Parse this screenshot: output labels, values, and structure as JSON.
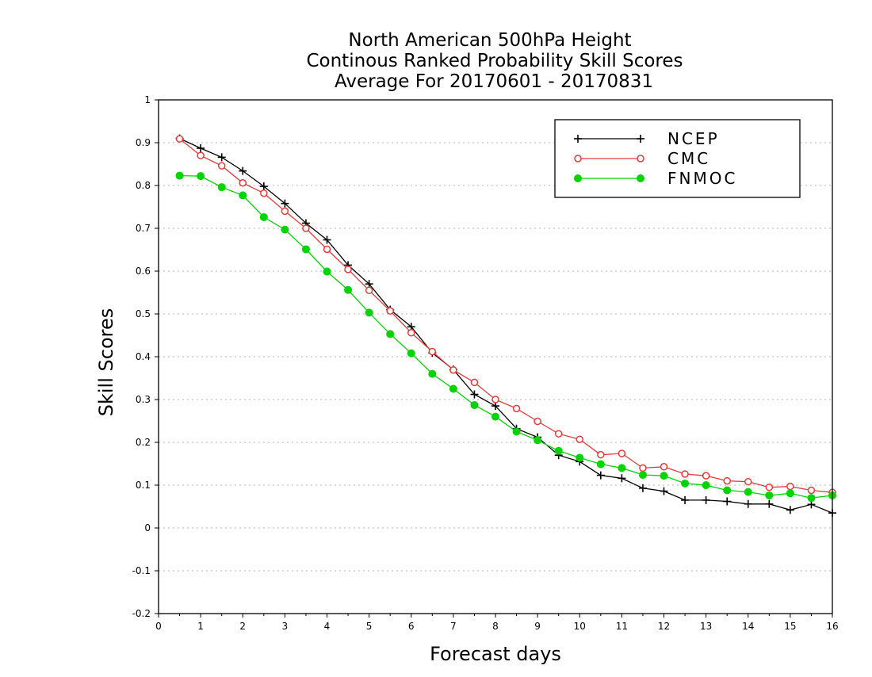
{
  "chart_data": {
    "type": "line",
    "title_lines": [
      "North American 500hPa Height",
      "Continous Ranked Probability Skill Scores",
      "Average For 20170601 - 20170831"
    ],
    "xlabel": "Forecast days",
    "ylabel": "Skill Scores",
    "xlim": [
      0,
      16
    ],
    "ylim": [
      -0.2,
      1
    ],
    "xticks": [
      "0",
      "1",
      "2",
      "3",
      "4",
      "5",
      "6",
      "7",
      "8",
      "9",
      "10",
      "11",
      "12",
      "13",
      "14",
      "15",
      "16"
    ],
    "yticks": [
      "-0.2",
      "-0.1",
      "0",
      "0.1",
      "0.2",
      "0.3",
      "0.4",
      "0.5",
      "0.6",
      "0.7",
      "0.8",
      "0.9",
      "1"
    ],
    "ytick_values": [
      -0.2,
      -0.1,
      0,
      0.1,
      0.2,
      0.3,
      0.4,
      0.5,
      0.6,
      0.7,
      0.8,
      0.9,
      1
    ],
    "grid": "horizontal dotted",
    "legend_position": "top-right",
    "x": [
      0.5,
      1,
      1.5,
      2,
      2.5,
      3,
      3.5,
      4,
      4.5,
      5,
      5.5,
      6,
      6.5,
      7,
      7.5,
      8,
      8.5,
      9,
      9.5,
      10,
      10.5,
      11,
      11.5,
      12,
      12.5,
      13,
      13.5,
      14,
      14.5,
      15,
      15.5,
      16
    ],
    "series": [
      {
        "name": "NCEP",
        "color": "#000000",
        "marker": "plus",
        "values": [
          0.91,
          0.887,
          0.866,
          0.834,
          0.798,
          0.758,
          0.712,
          0.673,
          0.614,
          0.57,
          0.51,
          0.47,
          0.409,
          0.37,
          0.312,
          0.285,
          0.232,
          0.212,
          0.17,
          0.155,
          0.123,
          0.116,
          0.093,
          0.086,
          0.065,
          0.065,
          0.062,
          0.056,
          0.056,
          0.042,
          0.055,
          0.035
        ]
      },
      {
        "name": "CMC",
        "color": "#e8393a",
        "marker": "open-circle",
        "values": [
          0.909,
          0.87,
          0.846,
          0.806,
          0.782,
          0.74,
          0.7,
          0.651,
          0.604,
          0.555,
          0.507,
          0.456,
          0.412,
          0.369,
          0.34,
          0.3,
          0.279,
          0.249,
          0.22,
          0.207,
          0.171,
          0.174,
          0.14,
          0.143,
          0.126,
          0.122,
          0.11,
          0.108,
          0.095,
          0.097,
          0.088,
          0.083
        ]
      },
      {
        "name": "FNMOC",
        "color": "#00d400",
        "marker": "filled-circle",
        "values": [
          0.823,
          0.822,
          0.796,
          0.777,
          0.726,
          0.697,
          0.651,
          0.599,
          0.556,
          0.503,
          0.453,
          0.408,
          0.36,
          0.325,
          0.287,
          0.26,
          0.225,
          0.205,
          0.18,
          0.164,
          0.149,
          0.14,
          0.124,
          0.122,
          0.104,
          0.1,
          0.088,
          0.084,
          0.076,
          0.081,
          0.07,
          0.076
        ]
      }
    ]
  }
}
